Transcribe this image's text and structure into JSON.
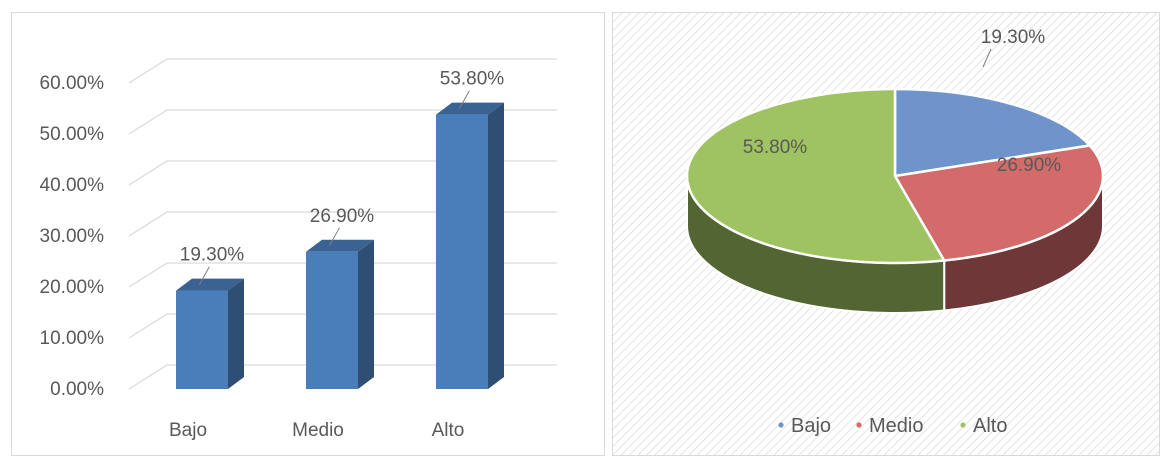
{
  "chart_data": [
    {
      "type": "bar",
      "categories": [
        "Bajo",
        "Medio",
        "Alto"
      ],
      "values": [
        19.3,
        26.9,
        53.8
      ],
      "data_labels": [
        "19.30%",
        "26.90%",
        "53.80%"
      ],
      "y_ticks": [
        "0.00%",
        "10.00%",
        "20.00%",
        "30.00%",
        "40.00%",
        "50.00%",
        "60.00%"
      ],
      "ylim": [
        0,
        60
      ],
      "grid": true,
      "bar_color": "#4a7ebb",
      "three_d": true
    },
    {
      "type": "pie",
      "categories": [
        "Bajo",
        "Medio",
        "Alto"
      ],
      "values": [
        19.3,
        26.9,
        53.8
      ],
      "data_labels": [
        "19.30%",
        "26.90%",
        "53.80%"
      ],
      "colors": [
        "#6f94cc",
        "#d36b6b",
        "#9fc263"
      ],
      "legend_position": "bottom",
      "three_d": true
    }
  ]
}
